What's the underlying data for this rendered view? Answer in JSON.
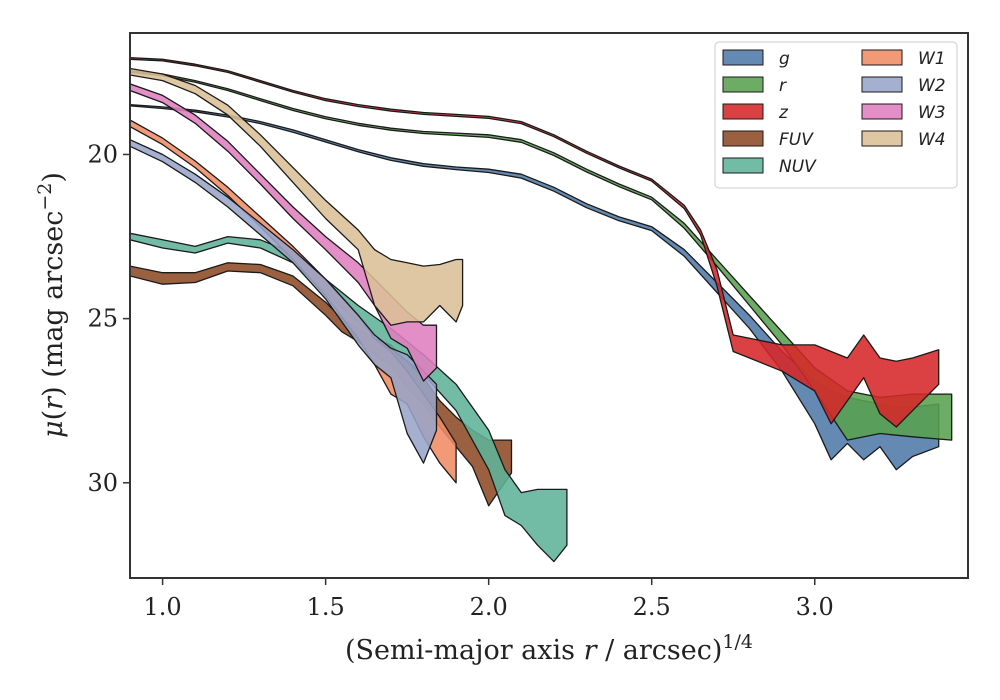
{
  "chart_data": {
    "type": "area",
    "xlabel": "(Semi-major axis r / arcsec)^{1/4}",
    "ylabel": "μ(r) (mag arcsec^{-2})",
    "xlim": [
      0.9,
      3.47
    ],
    "ylim": [
      32.9,
      16.3
    ],
    "xticks": [
      1.0,
      1.5,
      2.0,
      2.5,
      3.0
    ],
    "xtick_labels": [
      "1.0",
      "1.5",
      "2.0",
      "2.5",
      "3.0"
    ],
    "yticks": [
      20,
      25,
      30
    ],
    "ytick_labels": [
      "20",
      "25",
      "30"
    ],
    "legend_position": "top-right",
    "legend_columns": 2,
    "series": [
      {
        "name": "g",
        "color": "#4e79a7",
        "x": [
          0.9,
          1.0,
          1.1,
          1.2,
          1.3,
          1.4,
          1.5,
          1.6,
          1.7,
          1.8,
          1.9,
          2.0,
          2.1,
          2.2,
          2.3,
          2.4,
          2.5,
          2.6,
          2.7,
          2.8,
          2.9,
          3.0,
          3.05,
          3.1,
          3.15,
          3.2,
          3.25,
          3.3,
          3.38
        ],
        "lo": [
          18.48,
          18.55,
          18.65,
          18.8,
          19.0,
          19.25,
          19.55,
          19.85,
          20.1,
          20.28,
          20.38,
          20.45,
          20.6,
          21.0,
          21.5,
          21.9,
          22.2,
          22.9,
          23.9,
          24.9,
          26.0,
          26.9,
          27.2,
          27.4,
          27.5,
          27.6,
          27.7,
          27.7,
          27.6
        ],
        "hi": [
          18.52,
          18.6,
          18.7,
          18.86,
          19.06,
          19.32,
          19.62,
          19.92,
          20.18,
          20.36,
          20.46,
          20.55,
          20.72,
          21.12,
          21.62,
          22.02,
          22.32,
          23.1,
          24.2,
          25.3,
          26.6,
          28.2,
          29.3,
          28.8,
          29.3,
          28.9,
          29.6,
          29.2,
          28.9
        ]
      },
      {
        "name": "r",
        "color": "#59a14f",
        "x": [
          0.9,
          1.0,
          1.1,
          1.2,
          1.3,
          1.4,
          1.5,
          1.6,
          1.7,
          1.8,
          1.9,
          2.0,
          2.1,
          2.2,
          2.3,
          2.4,
          2.5,
          2.6,
          2.7,
          2.8,
          2.9,
          3.0,
          3.1,
          3.2,
          3.3,
          3.42
        ],
        "lo": [
          17.45,
          17.55,
          17.75,
          18.0,
          18.3,
          18.6,
          18.85,
          19.05,
          19.2,
          19.3,
          19.35,
          19.4,
          19.55,
          19.95,
          20.45,
          20.9,
          21.3,
          22.1,
          23.2,
          24.3,
          25.4,
          26.5,
          27.2,
          27.4,
          27.3,
          27.3
        ],
        "hi": [
          17.5,
          17.6,
          17.8,
          18.05,
          18.36,
          18.66,
          18.91,
          19.11,
          19.26,
          19.36,
          19.42,
          19.48,
          19.63,
          20.03,
          20.53,
          20.98,
          21.38,
          22.25,
          23.4,
          24.6,
          25.8,
          27.2,
          28.7,
          28.5,
          28.6,
          28.7
        ]
      },
      {
        "name": "z",
        "color": "#d62728",
        "x": [
          0.9,
          1.0,
          1.1,
          1.2,
          1.3,
          1.4,
          1.5,
          1.6,
          1.7,
          1.8,
          1.9,
          2.0,
          2.1,
          2.2,
          2.3,
          2.4,
          2.5,
          2.6,
          2.65,
          2.7,
          2.75,
          2.8,
          2.9,
          3.0,
          3.05,
          3.1,
          3.15,
          3.2,
          3.25,
          3.3,
          3.38
        ],
        "lo": [
          17.05,
          17.1,
          17.25,
          17.45,
          17.75,
          18.05,
          18.3,
          18.48,
          18.62,
          18.72,
          18.78,
          18.84,
          19.0,
          19.4,
          19.9,
          20.35,
          20.75,
          21.55,
          22.3,
          23.5,
          25.5,
          25.6,
          25.8,
          25.8,
          26.0,
          26.2,
          25.5,
          26.2,
          26.3,
          26.2,
          25.95
        ],
        "hi": [
          17.1,
          17.15,
          17.3,
          17.5,
          17.8,
          18.1,
          18.36,
          18.54,
          18.68,
          18.78,
          18.84,
          18.9,
          19.06,
          19.46,
          19.96,
          20.41,
          20.81,
          21.65,
          22.45,
          24.0,
          26.0,
          26.2,
          26.6,
          27.2,
          28.2,
          27.5,
          26.8,
          27.9,
          28.3,
          27.8,
          27.0
        ]
      },
      {
        "name": "FUV",
        "color": "#8c4a24",
        "x": [
          0.9,
          1.0,
          1.1,
          1.2,
          1.3,
          1.4,
          1.5,
          1.55,
          1.6,
          1.65,
          1.7,
          1.75,
          1.8,
          1.85,
          1.9,
          1.95,
          2.0,
          2.07
        ],
        "lo": [
          23.4,
          23.6,
          23.6,
          23.3,
          23.35,
          23.7,
          24.5,
          25.0,
          25.3,
          25.6,
          25.8,
          26.3,
          26.8,
          27.5,
          28.0,
          28.4,
          28.7,
          28.7
        ],
        "hi": [
          23.7,
          23.95,
          23.9,
          23.55,
          23.6,
          24.0,
          24.9,
          25.4,
          25.7,
          26.1,
          26.4,
          27.1,
          27.6,
          28.3,
          28.9,
          29.5,
          30.7,
          29.7
        ]
      },
      {
        "name": "NUV",
        "color": "#5fb39a",
        "x": [
          0.9,
          1.0,
          1.1,
          1.2,
          1.3,
          1.4,
          1.5,
          1.6,
          1.7,
          1.8,
          1.9,
          2.0,
          2.05,
          2.1,
          2.15,
          2.2,
          2.24
        ],
        "lo": [
          22.4,
          22.6,
          22.8,
          22.5,
          22.6,
          23.0,
          23.8,
          24.6,
          25.3,
          26.1,
          27.0,
          28.4,
          29.6,
          30.3,
          30.2,
          30.2,
          30.2
        ],
        "hi": [
          22.6,
          22.85,
          23.0,
          22.7,
          22.85,
          23.3,
          24.2,
          25.1,
          25.9,
          26.7,
          27.8,
          29.6,
          31.0,
          31.3,
          31.9,
          32.4,
          31.9
        ]
      },
      {
        "name": "W1",
        "color": "#f08c64",
        "x": [
          0.9,
          1.0,
          1.1,
          1.2,
          1.3,
          1.4,
          1.5,
          1.6,
          1.65,
          1.7,
          1.75,
          1.8,
          1.85,
          1.9
        ],
        "lo": [
          18.95,
          19.5,
          20.2,
          21.0,
          21.9,
          22.8,
          23.8,
          24.9,
          25.6,
          26.0,
          26.6,
          27.3,
          28.0,
          28.8
        ],
        "hi": [
          19.15,
          19.7,
          20.4,
          21.25,
          22.2,
          23.2,
          24.3,
          25.6,
          26.4,
          27.3,
          27.6,
          28.6,
          29.4,
          30.0
        ]
      },
      {
        "name": "W2",
        "color": "#98a4c8",
        "x": [
          0.9,
          1.0,
          1.1,
          1.2,
          1.3,
          1.4,
          1.5,
          1.6,
          1.65,
          1.7,
          1.75,
          1.8,
          1.84
        ],
        "lo": [
          19.55,
          20.0,
          20.6,
          21.3,
          22.1,
          22.9,
          23.8,
          24.9,
          25.5,
          25.9,
          26.1,
          26.6,
          27.0
        ],
        "hi": [
          19.75,
          20.22,
          20.85,
          21.6,
          22.45,
          23.3,
          24.4,
          25.8,
          26.4,
          26.8,
          28.5,
          29.4,
          28.4
        ]
      },
      {
        "name": "W3",
        "color": "#e07ec0",
        "x": [
          0.9,
          1.0,
          1.1,
          1.2,
          1.3,
          1.4,
          1.5,
          1.55,
          1.6,
          1.65,
          1.7,
          1.75,
          1.8,
          1.84
        ],
        "lo": [
          17.85,
          18.2,
          18.8,
          19.6,
          20.6,
          21.6,
          22.5,
          22.9,
          23.3,
          23.8,
          24.3,
          24.8,
          25.2,
          25.2
        ],
        "hi": [
          18.05,
          18.42,
          19.05,
          19.9,
          20.9,
          21.95,
          22.9,
          23.4,
          23.9,
          24.6,
          25.6,
          25.9,
          26.9,
          26.5
        ]
      },
      {
        "name": "W4",
        "color": "#dcbf96",
        "x": [
          0.9,
          1.0,
          1.1,
          1.2,
          1.3,
          1.4,
          1.5,
          1.6,
          1.65,
          1.7,
          1.75,
          1.8,
          1.85,
          1.9,
          1.92
        ],
        "lo": [
          17.38,
          17.55,
          17.9,
          18.5,
          19.4,
          20.4,
          21.4,
          22.3,
          22.9,
          23.2,
          23.3,
          23.4,
          23.35,
          23.2,
          23.2
        ],
        "hi": [
          17.58,
          17.75,
          18.15,
          18.8,
          19.75,
          20.85,
          21.95,
          22.9,
          24.6,
          25.2,
          25.1,
          25.1,
          24.6,
          25.1,
          24.6
        ]
      }
    ]
  }
}
